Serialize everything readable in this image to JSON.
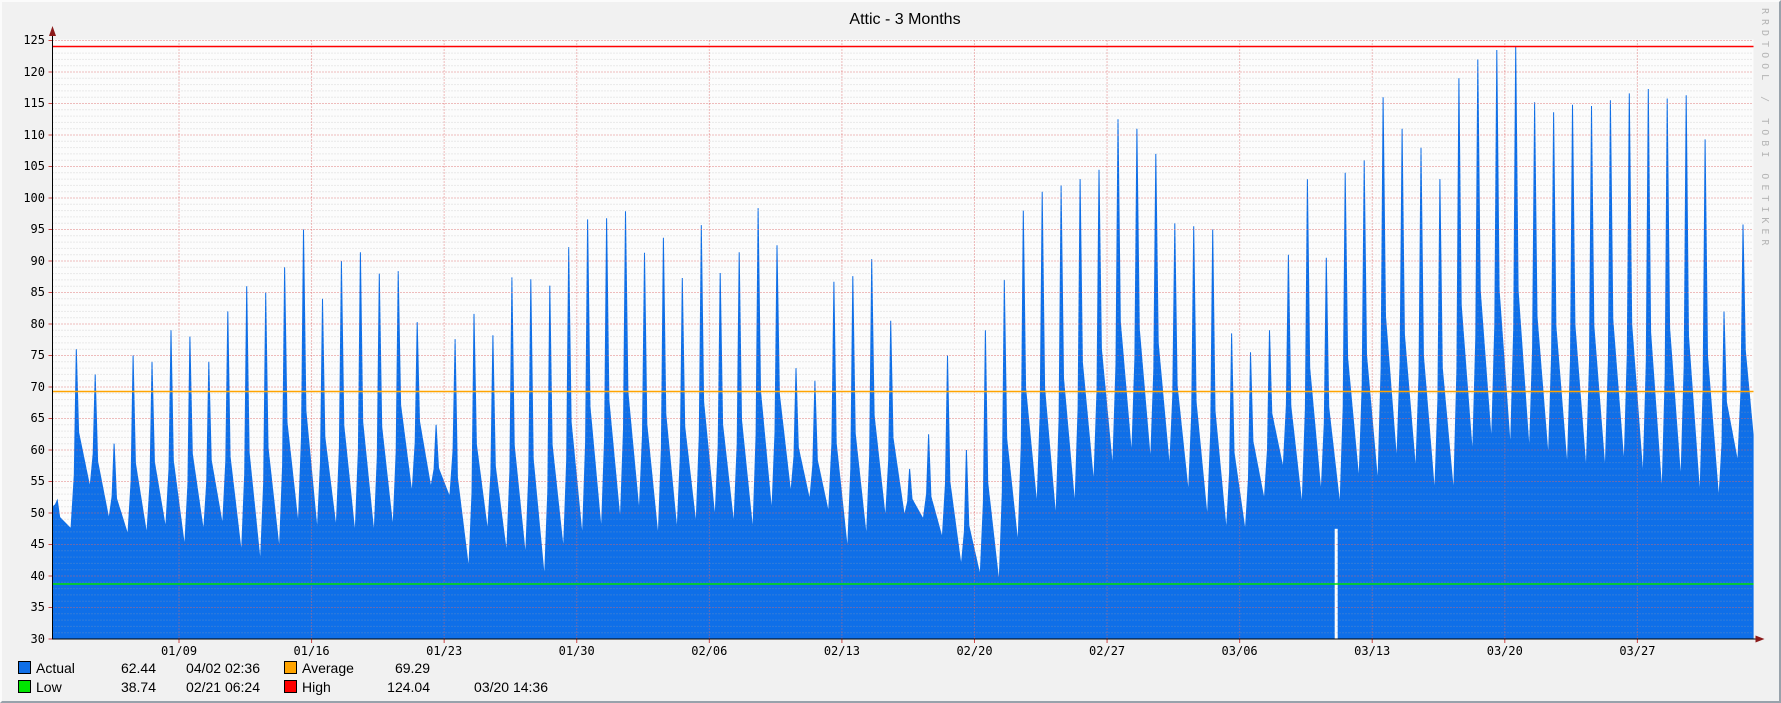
{
  "title": "Attic - 3 Months",
  "watermark": "RRDTOOL / TOBI OETIKER",
  "colors": {
    "area": "#0f6fe8",
    "canvas": "#fcfcfc",
    "background": "#f1f1f1",
    "high_line": "#ff0000",
    "average_line": "#ffa400",
    "low_line": "#00e400",
    "axis_arrow": "#8b1a1a",
    "legend_actual_swatch": "#0f6fe8",
    "legend_average_swatch": "#ffa400",
    "legend_low_swatch": "#00e400",
    "legend_high_swatch": "#ff0000"
  },
  "legend": {
    "actual": {
      "label": "Actual",
      "value": "62.44",
      "time": "04/02 02:36"
    },
    "average": {
      "label": "Average",
      "value": "69.29",
      "time": ""
    },
    "low": {
      "label": "Low",
      "value": "38.74",
      "time": "02/21 06:24"
    },
    "high": {
      "label": "High",
      "value": "124.04",
      "time": "03/20 14:36"
    }
  },
  "chart_data": {
    "type": "area",
    "title": "Attic - 3 Months",
    "series_name": "Actual",
    "ylim": [
      30,
      125
    ],
    "y_tick_step": 5,
    "y_ticks": [
      "30",
      "35",
      "40",
      "45",
      "50",
      "55",
      "60",
      "65",
      "70",
      "75",
      "80",
      "85",
      "90",
      "95",
      "100",
      "105",
      "110",
      "115",
      "120",
      "125"
    ],
    "x_ticks": [
      {
        "label": "01/09",
        "t": 7
      },
      {
        "label": "01/16",
        "t": 14
      },
      {
        "label": "01/23",
        "t": 21
      },
      {
        "label": "01/30",
        "t": 28
      },
      {
        "label": "02/06",
        "t": 35
      },
      {
        "label": "02/13",
        "t": 42
      },
      {
        "label": "02/20",
        "t": 49
      },
      {
        "label": "02/27",
        "t": 56
      },
      {
        "label": "03/06",
        "t": 63
      },
      {
        "label": "03/13",
        "t": 70
      },
      {
        "label": "03/20",
        "t": 77
      },
      {
        "label": "03/27",
        "t": 84
      }
    ],
    "ref_lines": [
      {
        "name": "High",
        "value": 124.04,
        "time": "03/20 14:36",
        "color": "#ff0000"
      },
      {
        "name": "Average",
        "value": 69.29,
        "time": "",
        "color": "#ffa400"
      },
      {
        "name": "Low",
        "value": 38.74,
        "time": "02/21 06:24",
        "color": "#00e400"
      }
    ],
    "gap": {
      "t": 68.1,
      "from_value": 47.5,
      "note": "thin no-data notch near 03/11"
    },
    "start": {
      "t": 0.35,
      "value": 51
    },
    "end": {
      "t": 90.11,
      "value": 62.44,
      "time": "04/02 02:36"
    },
    "days_format": [
      "date",
      "morning_low",
      "afternoon_high"
    ],
    "days": [
      [
        "01/02",
        51,
        52
      ],
      [
        "01/03",
        47.5,
        76
      ],
      [
        "01/04",
        54,
        72
      ],
      [
        "01/05",
        49,
        61
      ],
      [
        "01/06",
        46.5,
        75
      ],
      [
        "01/07",
        46.5,
        74
      ],
      [
        "01/08",
        47.5,
        79
      ],
      [
        "01/09",
        44.5,
        78
      ],
      [
        "01/10",
        47,
        74
      ],
      [
        "01/11",
        48,
        82
      ],
      [
        "01/12",
        43.5,
        86
      ],
      [
        "01/13",
        42,
        85
      ],
      [
        "01/14",
        44,
        89
      ],
      [
        "01/15",
        48,
        95
      ],
      [
        "01/16",
        47,
        84
      ],
      [
        "01/17",
        47.5,
        90
      ],
      [
        "01/18",
        46.5,
        91.4
      ],
      [
        "01/19",
        46.5,
        88
      ],
      [
        "01/20",
        47.5,
        88.4
      ],
      [
        "01/21",
        53,
        80.3
      ],
      [
        "01/22",
        54,
        64
      ],
      [
        "01/23",
        52.5,
        77.6
      ],
      [
        "01/24",
        41,
        81.6
      ],
      [
        "01/25",
        47,
        78.2
      ],
      [
        "01/26",
        43.5,
        87.4
      ],
      [
        "01/27",
        43,
        87.1
      ],
      [
        "01/28",
        39.5,
        86.1
      ],
      [
        "01/29",
        44,
        92.2
      ],
      [
        "01/30",
        46,
        96.6
      ],
      [
        "01/31",
        47,
        96.8
      ],
      [
        "02/01",
        48.5,
        97.9
      ],
      [
        "02/02",
        50,
        91.3
      ],
      [
        "02/03",
        46,
        93.7
      ],
      [
        "02/04",
        47,
        87.3
      ],
      [
        "02/05",
        48,
        95.7
      ],
      [
        "02/06",
        49,
        88.1
      ],
      [
        "02/07",
        48,
        91.4
      ],
      [
        "02/08",
        47,
        98.4
      ],
      [
        "02/09",
        50,
        92.5
      ],
      [
        "02/10",
        53,
        73
      ],
      [
        "02/11",
        52,
        71
      ],
      [
        "02/12",
        50,
        86.7
      ],
      [
        "02/13",
        44,
        87.6
      ],
      [
        "02/14",
        46,
        90.3
      ],
      [
        "02/15",
        49,
        80.5
      ],
      [
        "02/16",
        49.5,
        57
      ],
      [
        "02/17",
        49,
        62.5
      ],
      [
        "02/18",
        46,
        75
      ],
      [
        "02/19",
        41.5,
        60
      ],
      [
        "02/20",
        40,
        79
      ],
      [
        "02/21",
        38.74,
        87
      ],
      [
        "02/22",
        45,
        98
      ],
      [
        "02/23",
        51,
        101
      ],
      [
        "02/24",
        49,
        102
      ],
      [
        "02/25",
        51,
        103
      ],
      [
        "02/26",
        54.5,
        104.5
      ],
      [
        "02/27",
        57,
        112.5
      ],
      [
        "02/28",
        59,
        111
      ],
      [
        "03/01",
        58,
        107
      ],
      [
        "03/02",
        57,
        96
      ],
      [
        "03/03",
        53,
        95.5
      ],
      [
        "03/04",
        49,
        95
      ],
      [
        "03/05",
        47,
        78.5
      ],
      [
        "03/06",
        47,
        75.5
      ],
      [
        "03/07",
        52,
        79
      ],
      [
        "03/08",
        57,
        91
      ],
      [
        "03/09",
        51,
        103
      ],
      [
        "03/10",
        53,
        90.5
      ],
      [
        "03/11",
        51,
        104
      ],
      [
        "03/12",
        55,
        106
      ],
      [
        "03/13",
        54.5,
        116
      ],
      [
        "03/14",
        58,
        111
      ],
      [
        "03/15",
        56.5,
        108
      ],
      [
        "03/16",
        53,
        103
      ],
      [
        "03/17",
        53,
        119
      ],
      [
        "03/18",
        59,
        122
      ],
      [
        "03/19",
        61,
        123.5
      ],
      [
        "03/20",
        60,
        124.04
      ],
      [
        "03/21",
        59.5,
        115.2
      ],
      [
        "03/22",
        58.5,
        113.6
      ],
      [
        "03/23",
        57,
        114.8
      ],
      [
        "03/24",
        56.5,
        114.6
      ],
      [
        "03/25",
        56.5,
        115.5
      ],
      [
        "03/26",
        57.5,
        116.6
      ],
      [
        "03/27",
        55.5,
        117.3
      ],
      [
        "03/28",
        53,
        115.8
      ],
      [
        "03/29",
        55,
        116.3
      ],
      [
        "03/30",
        52.5,
        109.3
      ],
      [
        "03/31",
        52,
        82
      ],
      [
        "04/01",
        58,
        95.8
      ]
    ]
  }
}
